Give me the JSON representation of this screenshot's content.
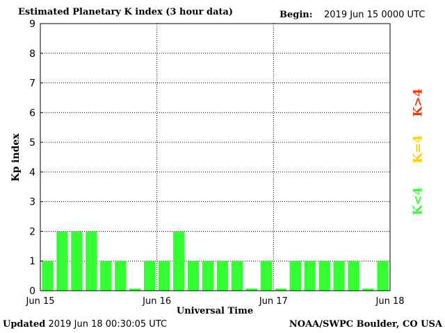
{
  "header": {
    "title": "Estimated Planetary K index (3 hour data)",
    "begin_label": "Begin:",
    "begin_value": "2019 Jun 15 0000 UTC"
  },
  "footer": {
    "updated_label": "Updated",
    "updated_value": "2019 Jun 18 00:30:05 UTC",
    "credit": "NOAA/SWPC Boulder, CO USA"
  },
  "legend": {
    "high": {
      "label": "K>4",
      "color": "#ff3300"
    },
    "mid": {
      "label": "K=4",
      "color": "#ffcc00"
    },
    "low": {
      "label": "K<4",
      "color": "#33ff33"
    }
  },
  "chart_data": {
    "type": "bar",
    "title": "Estimated Planetary K index (3 hour data)",
    "xlabel": "Universal Time",
    "ylabel": "Kp index",
    "ylim": [
      0,
      9
    ],
    "yticks": [
      0,
      1,
      2,
      3,
      4,
      5,
      6,
      7,
      8,
      9
    ],
    "xticks": [
      "Jun 15",
      "Jun 16",
      "Jun 17",
      "Jun 18"
    ],
    "grid": true,
    "bar_color": "#33ff33",
    "values": [
      1,
      2,
      2,
      2,
      1,
      1,
      0,
      1,
      1,
      2,
      1,
      1,
      1,
      1,
      0,
      1,
      0,
      1,
      1,
      1,
      1,
      1,
      0,
      1
    ]
  }
}
